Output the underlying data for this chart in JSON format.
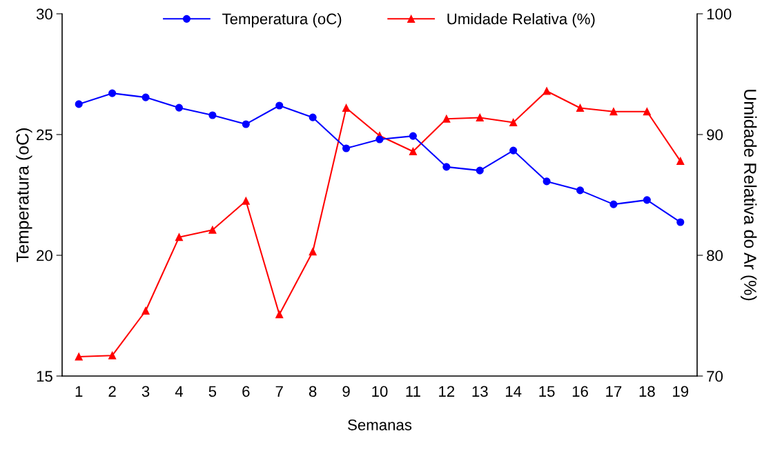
{
  "chart_data": {
    "type": "line",
    "xlabel": "Semanas",
    "ylabel": "Temperatura (oC)",
    "y2label": "Umidade Relativa do Ar (%)",
    "categories": [
      "1",
      "2",
      "3",
      "4",
      "5",
      "6",
      "7",
      "8",
      "9",
      "10",
      "11",
      "12",
      "13",
      "14",
      "15",
      "16",
      "17",
      "18",
      "19"
    ],
    "series": [
      {
        "name": "Temperatura (oC)",
        "color": "#0000ff",
        "marker": "circle",
        "values": [
          26.26,
          26.71,
          26.54,
          26.11,
          25.8,
          25.43,
          26.2,
          25.71,
          24.43,
          24.8,
          24.94,
          23.66,
          23.51,
          24.34,
          23.06,
          22.69,
          22.11,
          22.29,
          21.37
        ]
      },
      {
        "name": "Umidade Relativa (%)",
        "color": "#ff0000",
        "marker": "triangle",
        "axis": "y2",
        "values": [
          71.6,
          71.7,
          75.4,
          81.5,
          82.1,
          84.5,
          75.1,
          80.3,
          92.2,
          89.9,
          88.6,
          91.3,
          91.4,
          91.0,
          93.6,
          92.2,
          91.9,
          91.9,
          87.8
        ]
      }
    ],
    "ylim": [
      15,
      30
    ],
    "yticks": [
      15,
      20,
      25,
      30
    ],
    "y2lim": [
      70,
      100
    ],
    "y2ticks": [
      70,
      80,
      90,
      100
    ],
    "grid": false,
    "legend": "top",
    "line_style": "solid"
  }
}
